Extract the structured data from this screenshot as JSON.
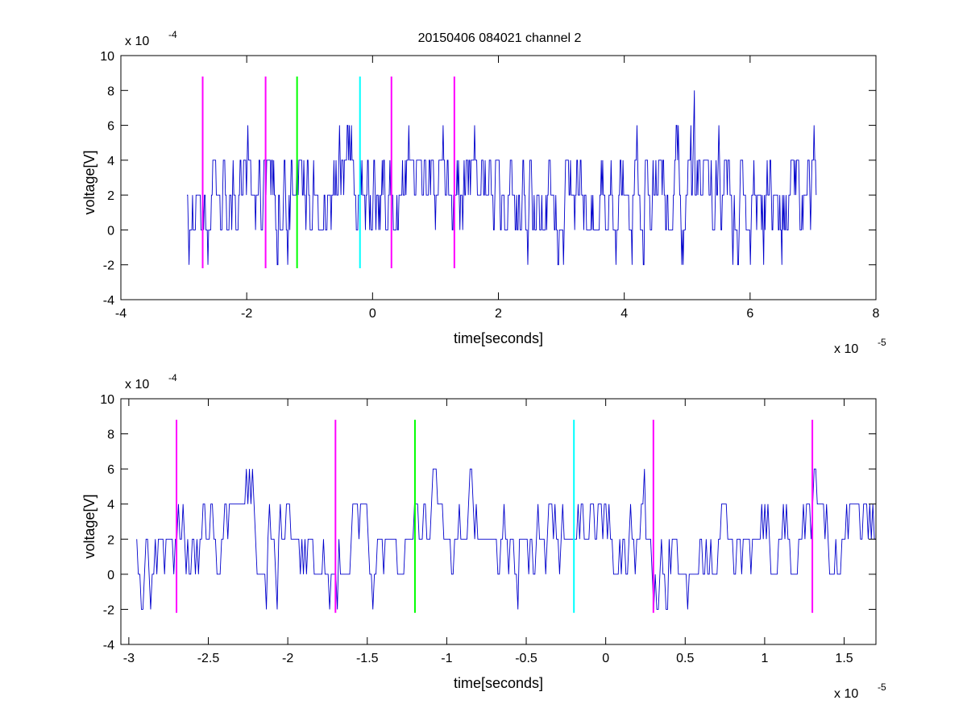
{
  "figure": {
    "title": "20150406 084021 channel 2"
  },
  "chart_data": [
    {
      "type": "line",
      "title": "20150406 084021 channel 2",
      "xlabel": "time[seconds]",
      "ylabel": "voltage[V]",
      "x_exponent": "x 10",
      "x_exponent_power": "-5",
      "y_exponent": "x 10",
      "y_exponent_power": "-4",
      "xlim": [
        -4,
        8
      ],
      "ylim": [
        -4,
        10
      ],
      "x_ticks": [
        -4,
        -2,
        0,
        2,
        4,
        6,
        8
      ],
      "x_tick_labels": [
        "-4",
        "-2",
        "0",
        "2",
        "4",
        "6",
        "8"
      ],
      "y_ticks": [
        -4,
        -2,
        0,
        2,
        4,
        6,
        8,
        10
      ],
      "y_tick_labels": [
        "-4",
        "-2",
        "0",
        "2",
        "4",
        "6",
        "8",
        "10"
      ],
      "grid": false,
      "signal": {
        "color": "#0000cc",
        "x_start": -2.95,
        "x_end": 7.05,
        "levels": [
          -2,
          0,
          2,
          4,
          6,
          8
        ],
        "seed": 1207
      },
      "markers": [
        {
          "x": -2.7,
          "y_low": -2.2,
          "y_high": 8.8,
          "color": "#ff00ff"
        },
        {
          "x": -1.7,
          "y_low": -2.2,
          "y_high": 8.8,
          "color": "#ff00ff"
        },
        {
          "x": -1.2,
          "y_low": -2.2,
          "y_high": 8.8,
          "color": "#00ff00"
        },
        {
          "x": -0.2,
          "y_low": -2.2,
          "y_high": 8.8,
          "color": "#00ffff"
        },
        {
          "x": 0.3,
          "y_low": -2.2,
          "y_high": 8.8,
          "color": "#ff00ff"
        },
        {
          "x": 1.3,
          "y_low": -2.2,
          "y_high": 8.8,
          "color": "#ff00ff"
        }
      ]
    },
    {
      "type": "line",
      "title": "",
      "xlabel": "time[seconds]",
      "ylabel": "voltage[V]",
      "x_exponent": "x 10",
      "x_exponent_power": "-5",
      "y_exponent": "x 10",
      "y_exponent_power": "-4",
      "xlim": [
        -3.05,
        1.7
      ],
      "ylim": [
        -4,
        10
      ],
      "x_ticks": [
        -3,
        -2.5,
        -2,
        -1.5,
        -1,
        -0.5,
        0,
        0.5,
        1,
        1.5
      ],
      "x_tick_labels": [
        "-3",
        "-2.5",
        "-2",
        "-1.5",
        "-1",
        "-0.5",
        "0",
        "0.5",
        "1",
        "1.5"
      ],
      "y_ticks": [
        -4,
        -2,
        0,
        2,
        4,
        6,
        8,
        10
      ],
      "y_tick_labels": [
        "-4",
        "-2",
        "0",
        "2",
        "4",
        "6",
        "8",
        "10"
      ],
      "grid": false,
      "signal": {
        "color": "#0000cc",
        "x_start": -2.95,
        "x_end": 1.7,
        "levels": [
          -2,
          0,
          2,
          4,
          6
        ],
        "seed": 4421
      },
      "markers": [
        {
          "x": -2.7,
          "y_low": -2.2,
          "y_high": 8.8,
          "color": "#ff00ff"
        },
        {
          "x": -1.7,
          "y_low": -2.2,
          "y_high": 8.8,
          "color": "#ff00ff"
        },
        {
          "x": -1.2,
          "y_low": -2.2,
          "y_high": 8.8,
          "color": "#00ff00"
        },
        {
          "x": -0.2,
          "y_low": -2.2,
          "y_high": 8.8,
          "color": "#00ffff"
        },
        {
          "x": 0.3,
          "y_low": -2.2,
          "y_high": 8.8,
          "color": "#ff00ff"
        },
        {
          "x": 1.3,
          "y_low": -2.2,
          "y_high": 8.8,
          "color": "#ff00ff"
        }
      ]
    }
  ]
}
